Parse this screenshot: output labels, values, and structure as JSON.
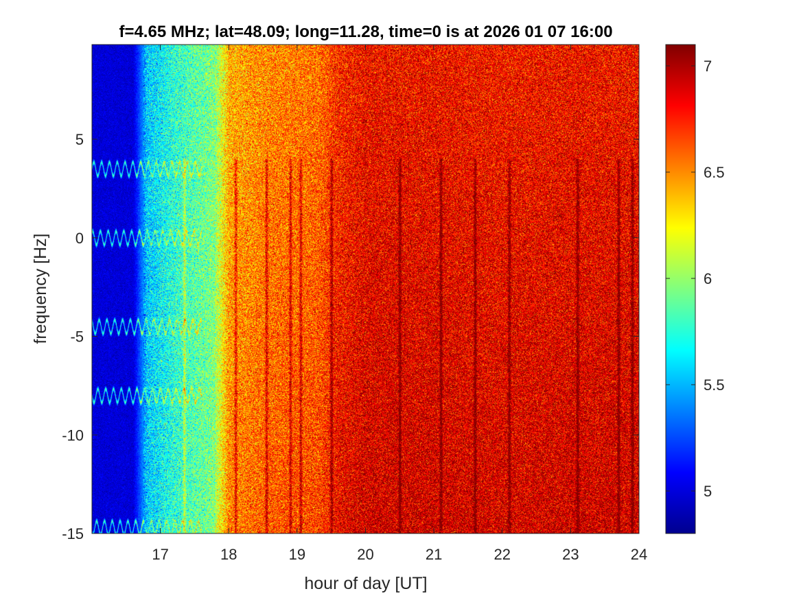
{
  "chart_data": {
    "type": "heatmap",
    "title": "f=4.65 MHz;  lat=48.09; long=11.28, time=0 is at 2026 01 07 16:00",
    "xlabel": "hour of day [UT]",
    "ylabel": "frequency [Hz]",
    "xlim": [
      16,
      24
    ],
    "ylim": [
      -15,
      9.8
    ],
    "xticks": [
      17,
      18,
      19,
      20,
      21,
      22,
      23,
      24
    ],
    "yticks": [
      -15,
      -10,
      -5,
      0,
      5
    ],
    "colorbar": {
      "clim": [
        4.8,
        7.1
      ],
      "ticks": [
        5,
        5.5,
        6,
        6.5,
        7
      ],
      "colormap": "jet"
    },
    "mean_level_profile": {
      "hour": [
        16.0,
        16.6,
        16.8,
        17.2,
        17.8,
        18.0,
        18.6,
        19.3,
        19.6,
        20.0,
        21.0,
        22.0,
        23.0,
        24.0
      ],
      "value": [
        5.0,
        5.0,
        5.55,
        5.75,
        5.95,
        6.4,
        6.5,
        6.55,
        6.72,
        6.8,
        6.8,
        6.78,
        6.8,
        6.8
      ]
    },
    "carrier_traces_hz": [
      3.5,
      0.0,
      -4.5,
      -8.0,
      -14.7
    ],
    "bursts_hour": [
      17.35,
      18.1,
      18.55,
      18.9,
      19.05,
      19.5,
      20.5,
      21.1,
      21.6,
      22.1,
      23.1,
      23.7,
      23.9
    ]
  }
}
